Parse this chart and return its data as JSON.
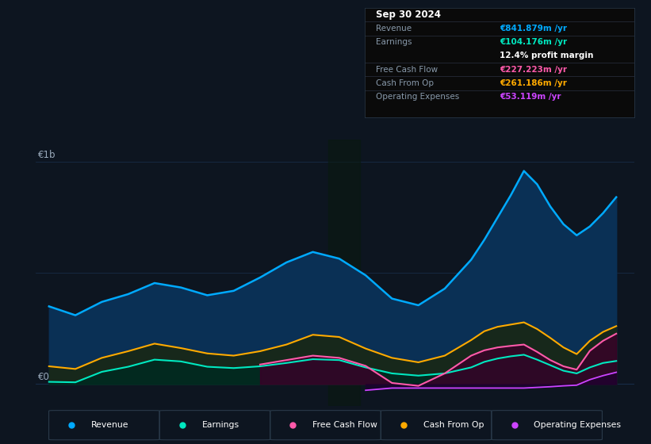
{
  "bg_color": "#0d1520",
  "plot_bg_color": "#0d1520",
  "info_bg_color": "#0a0a0a",
  "grid_color": "#1a3050",
  "years": [
    2014.0,
    2014.5,
    2015.0,
    2015.5,
    2016.0,
    2016.5,
    2017.0,
    2017.5,
    2018.0,
    2018.5,
    2019.0,
    2019.5,
    2020.0,
    2020.5,
    2021.0,
    2021.5,
    2022.0,
    2022.25,
    2022.5,
    2022.75,
    2023.0,
    2023.25,
    2023.5,
    2023.75,
    2024.0,
    2024.25,
    2024.5,
    2024.75
  ],
  "revenue": [
    350,
    310,
    370,
    405,
    455,
    435,
    400,
    420,
    480,
    548,
    595,
    565,
    490,
    385,
    355,
    430,
    560,
    650,
    750,
    850,
    960,
    900,
    800,
    720,
    670,
    710,
    770,
    842
  ],
  "earnings": [
    10,
    8,
    55,
    78,
    110,
    102,
    78,
    72,
    80,
    95,
    112,
    108,
    75,
    48,
    38,
    48,
    75,
    100,
    115,
    125,
    132,
    110,
    85,
    60,
    48,
    75,
    95,
    104
  ],
  "free_cash_flow": [
    0,
    0,
    0,
    0,
    0,
    0,
    0,
    0,
    88,
    108,
    128,
    118,
    82,
    5,
    -8,
    48,
    128,
    152,
    165,
    172,
    178,
    145,
    108,
    80,
    65,
    150,
    195,
    227
  ],
  "cash_from_op": [
    80,
    68,
    118,
    148,
    182,
    162,
    138,
    128,
    148,
    178,
    222,
    212,
    160,
    118,
    98,
    128,
    198,
    238,
    258,
    268,
    278,
    248,
    208,
    165,
    135,
    195,
    235,
    261
  ],
  "operating_expenses": [
    0,
    0,
    0,
    0,
    0,
    0,
    0,
    0,
    0,
    0,
    0,
    0,
    -28,
    -18,
    -18,
    -18,
    -18,
    -18,
    -18,
    -18,
    -18,
    -15,
    -12,
    -8,
    -5,
    20,
    38,
    53
  ],
  "revenue_color": "#00aaff",
  "revenue_fill": "#0a3055",
  "earnings_color": "#00e8c0",
  "earnings_fill": "#003328",
  "fcf_color": "#ff5aaa",
  "fcf_fill": "#550030",
  "cop_color": "#ffaa00",
  "cop_fill": "#1a1800",
  "opex_color": "#cc44ff",
  "opex_fill": "#2a0040",
  "shadow_region_start": 2019.3,
  "shadow_region_end": 2019.9,
  "xmin": 2013.75,
  "xmax": 2025.1,
  "ymin": -100,
  "ymax": 1100,
  "y_label_1b": "€1b",
  "y_label_0": "€0",
  "info_box": {
    "date": "Sep 30 2024",
    "rows": [
      {
        "label": "Revenue",
        "value": "€841.879m /yr",
        "color": "#00aaff"
      },
      {
        "label": "Earnings",
        "value": "€104.176m /yr",
        "color": "#00e8c0"
      },
      {
        "label": "",
        "value": "12.4% profit margin",
        "color": "#ffffff"
      },
      {
        "label": "Free Cash Flow",
        "value": "€227.223m /yr",
        "color": "#ff5aaa"
      },
      {
        "label": "Cash From Op",
        "value": "€261.186m /yr",
        "color": "#ffaa00"
      },
      {
        "label": "Operating Expenses",
        "value": "€53.119m /yr",
        "color": "#cc44ff"
      }
    ]
  },
  "legend": [
    {
      "label": "Revenue",
      "color": "#00aaff"
    },
    {
      "label": "Earnings",
      "color": "#00e8c0"
    },
    {
      "label": "Free Cash Flow",
      "color": "#ff5aaa"
    },
    {
      "label": "Cash From Op",
      "color": "#ffaa00"
    },
    {
      "label": "Operating Expenses",
      "color": "#cc44ff"
    }
  ]
}
